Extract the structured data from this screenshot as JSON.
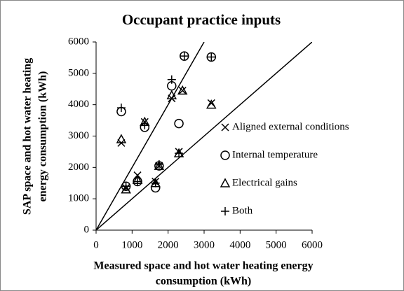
{
  "chart_data": {
    "type": "scatter",
    "title": "Occupant practice inputs",
    "xlabel": [
      "Measured space and hot water heating energy",
      "consumption (kWh)"
    ],
    "ylabel": [
      "SAP space and hot water heating",
      "energy consumption (kWh)"
    ],
    "xlim": [
      0,
      6000
    ],
    "ylim": [
      0,
      6000
    ],
    "xticks": [
      0,
      1000,
      2000,
      3000,
      4000,
      5000,
      6000
    ],
    "yticks": [
      0,
      1000,
      2000,
      3000,
      4000,
      5000,
      6000
    ],
    "grid": false,
    "lines": [
      {
        "x": [
          0,
          6000
        ],
        "y": [
          0,
          6000
        ],
        "color": "#000000"
      },
      {
        "x": [
          0,
          3000
        ],
        "y": [
          0,
          6000
        ],
        "color": "#000000"
      }
    ],
    "series": [
      {
        "name": "Aligned external conditions",
        "marker": "x",
        "color": "#000000",
        "x": [
          700,
          830,
          1150,
          1350,
          1650,
          1750,
          2100,
          2300,
          2400,
          3200
        ],
        "values": [
          2780,
          1350,
          1750,
          3450,
          1550,
          2050,
          4200,
          2500,
          4450,
          4050
        ]
      },
      {
        "name": "Internal temperature",
        "marker": "circle",
        "color": "#000000",
        "x": [
          700,
          830,
          1150,
          1350,
          1650,
          1750,
          2100,
          2300,
          2450,
          3200
        ],
        "values": [
          3780,
          1400,
          1550,
          3280,
          1350,
          2050,
          4600,
          3400,
          5550,
          5520
        ]
      },
      {
        "name": "Electrical gains",
        "marker": "triangle",
        "color": "#000000",
        "x": [
          700,
          830,
          1150,
          1350,
          1650,
          1750,
          2100,
          2300,
          2400,
          3200
        ],
        "values": [
          2900,
          1300,
          1600,
          3450,
          1500,
          2050,
          4300,
          2450,
          4450,
          4000
        ]
      },
      {
        "name": "Both",
        "marker": "plus",
        "color": "#000000",
        "x": [
          700,
          830,
          1150,
          1350,
          1650,
          1750,
          2100,
          2300,
          2450,
          3200
        ],
        "values": [
          3900,
          1400,
          1550,
          3350,
          1500,
          2100,
          4800,
          2450,
          5550,
          5520
        ]
      }
    ]
  }
}
